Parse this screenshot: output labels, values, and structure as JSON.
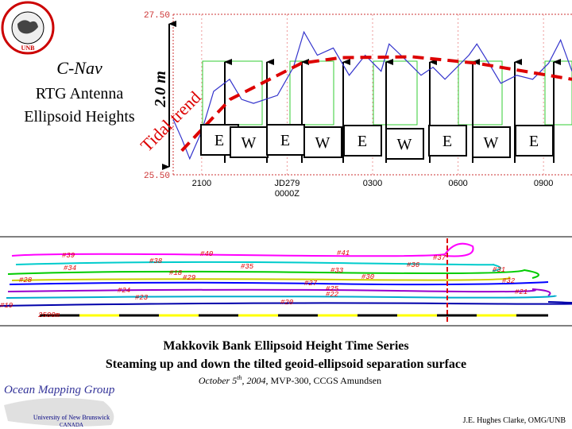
{
  "chart_data": {
    "type": "line",
    "series": [
      {
        "name": "Ellipsoid height",
        "color": "#3333cc",
        "x": [
          20.0,
          20.3,
          20.58,
          21.0,
          21.42,
          21.98,
          22.4,
          22.82,
          23.66,
          24.22,
          24.59,
          25.06,
          25.62,
          26.18,
          26.74,
          27.3,
          27.58,
          28.14,
          28.7,
          29.12,
          29.54,
          30.38,
          30.66,
          31.08,
          31.5,
          32.06,
          32.62,
          33.18,
          33.6,
          34.0
        ],
        "values": [
          26.19,
          25.95,
          25.7,
          26.04,
          26.54,
          26.69,
          26.44,
          26.39,
          26.49,
          26.84,
          27.28,
          26.99,
          27.08,
          26.74,
          26.99,
          26.79,
          27.13,
          26.94,
          26.74,
          26.84,
          26.69,
          26.99,
          27.13,
          26.89,
          26.64,
          26.74,
          26.69,
          26.89,
          27.18,
          26.79
        ]
      },
      {
        "name": "Tidal trend",
        "color": "#dd0000",
        "x": [
          20.3,
          22.0,
          24.5,
          25.9,
          28.4,
          30.66,
          34.0
        ],
        "values": [
          25.8,
          26.44,
          26.89,
          26.96,
          26.97,
          26.89,
          26.69
        ]
      }
    ],
    "xlim": [
      20,
      34
    ],
    "ylim": [
      25.5,
      27.5
    ],
    "xticks": [
      {
        "value": 21,
        "label": "2100"
      },
      {
        "value": 24,
        "label": [
          "JD279",
          "0000Z"
        ]
      },
      {
        "value": 27,
        "label": "0300"
      },
      {
        "value": 30,
        "label": "0600"
      },
      {
        "value": 33,
        "label": "0900"
      }
    ],
    "yticks": [
      {
        "value": 25.5,
        "label": "25.50"
      },
      {
        "value": 27.5,
        "label": "27.50"
      }
    ],
    "grid": true,
    "annotations": {
      "range": "2.0 m",
      "trend": "Tidal trend",
      "headings": [
        "E",
        "W",
        "E",
        "W",
        "E",
        "W",
        "E",
        "W",
        "E"
      ]
    }
  },
  "slide": {
    "heading": [
      "C-Nav",
      "RTG Antenna",
      "Ellipsoid Heights"
    ],
    "logo": "UNB",
    "track_labels": [
      "#39",
      "#38",
      "#40",
      "#41",
      "#37",
      "#34",
      "#35",
      "#36",
      "#31",
      "#28",
      "#18",
      "#29",
      "#33",
      "#30",
      "#32",
      "#24",
      "#27",
      "#25",
      "#23",
      "#22",
      "#21",
      "#20",
      "#19",
      "2500m"
    ],
    "title": "Makkovik Bank Ellipsoid Height Time Series",
    "subtitle": "Steaming up and down the tilted geoid-ellipsoid separation surface",
    "date": [
      "October 5",
      "th",
      ", 2004",
      ", MVP-300, CCGS Amundsen"
    ],
    "group": "Ocean Mapping Group",
    "university": [
      "University of New Brunswick",
      "CANADA"
    ],
    "credit": "J.E. Hughes Clarke, OMG/UNB"
  }
}
